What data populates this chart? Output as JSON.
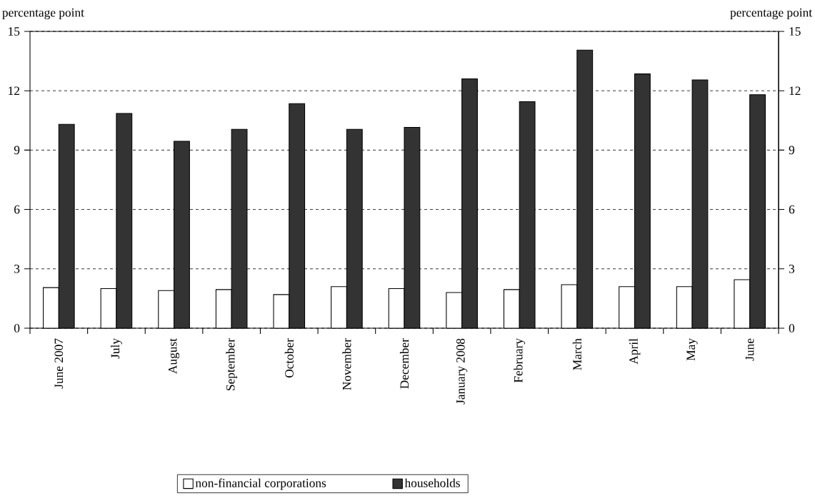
{
  "chart_data": {
    "type": "bar",
    "ylabel": "percentage point",
    "y2label": "percentage point",
    "categories": [
      "June 2007",
      "July",
      "August",
      "September",
      "October",
      "November",
      "December",
      "January 2008",
      "February",
      "March",
      "April",
      "May",
      "June"
    ],
    "series": [
      {
        "name": "non-financial corporations",
        "color": "#ffffff",
        "values": [
          2.05,
          2.0,
          1.9,
          1.95,
          1.7,
          2.1,
          2.0,
          1.8,
          1.95,
          2.2,
          2.1,
          2.1,
          2.45
        ]
      },
      {
        "name": "households",
        "color": "#333333",
        "values": [
          10.3,
          10.85,
          9.45,
          10.05,
          11.35,
          10.05,
          10.15,
          12.6,
          11.45,
          14.05,
          12.85,
          12.55,
          11.8
        ]
      }
    ],
    "ylim": [
      0,
      15
    ],
    "yticks": [
      0,
      3,
      6,
      9,
      12,
      15
    ],
    "y2lim": [
      0,
      15
    ],
    "y2ticks": [
      0,
      3,
      6,
      9,
      12,
      15
    ],
    "grid": "y",
    "legend": "bottom"
  }
}
